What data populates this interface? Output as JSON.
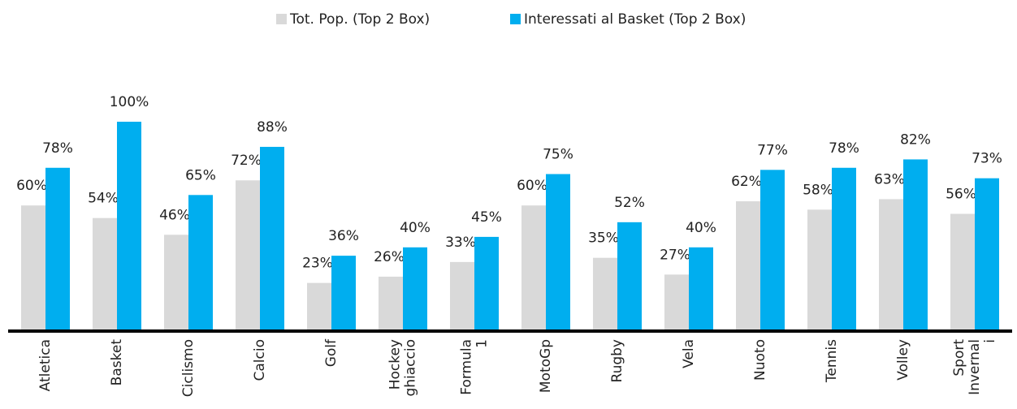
{
  "chart_data": {
    "type": "bar",
    "categories": [
      [
        "Atletica"
      ],
      [
        "Basket"
      ],
      [
        "Ciclismo"
      ],
      [
        "Calcio"
      ],
      [
        "Golf"
      ],
      [
        "Hockey",
        "ghiaccio"
      ],
      [
        "Formula",
        "1"
      ],
      [
        "MotoGp"
      ],
      [
        "Rugby"
      ],
      [
        "Vela"
      ],
      [
        "Nuoto"
      ],
      [
        "Tennis"
      ],
      [
        "Volley"
      ],
      [
        "Sport",
        "Invernal",
        "i"
      ]
    ],
    "series": [
      {
        "name": "Tot. Pop. (Top 2 Box)",
        "color": "#d9d9d9",
        "values": [
          60,
          54,
          46,
          72,
          23,
          26,
          33,
          60,
          35,
          27,
          62,
          58,
          63,
          56
        ],
        "value_labels": [
          "60%",
          "54%",
          "46%",
          "72%",
          "23%",
          "26%",
          "33%",
          "60%",
          "35%",
          "27%",
          "62%",
          "58%",
          "63%",
          "56%"
        ]
      },
      {
        "name": "Interessati al Basket (Top 2 Box)",
        "color": "#00aeef",
        "values": [
          78,
          100,
          65,
          88,
          36,
          40,
          45,
          75,
          52,
          40,
          77,
          78,
          82,
          73
        ],
        "value_labels": [
          "78%",
          "100%",
          "65%",
          "88%",
          "36%",
          "40%",
          "45%",
          "75%",
          "52%",
          "40%",
          "77%",
          "78%",
          "82%",
          "73%"
        ]
      }
    ],
    "ylim": [
      0,
      100
    ],
    "legend": "top"
  }
}
